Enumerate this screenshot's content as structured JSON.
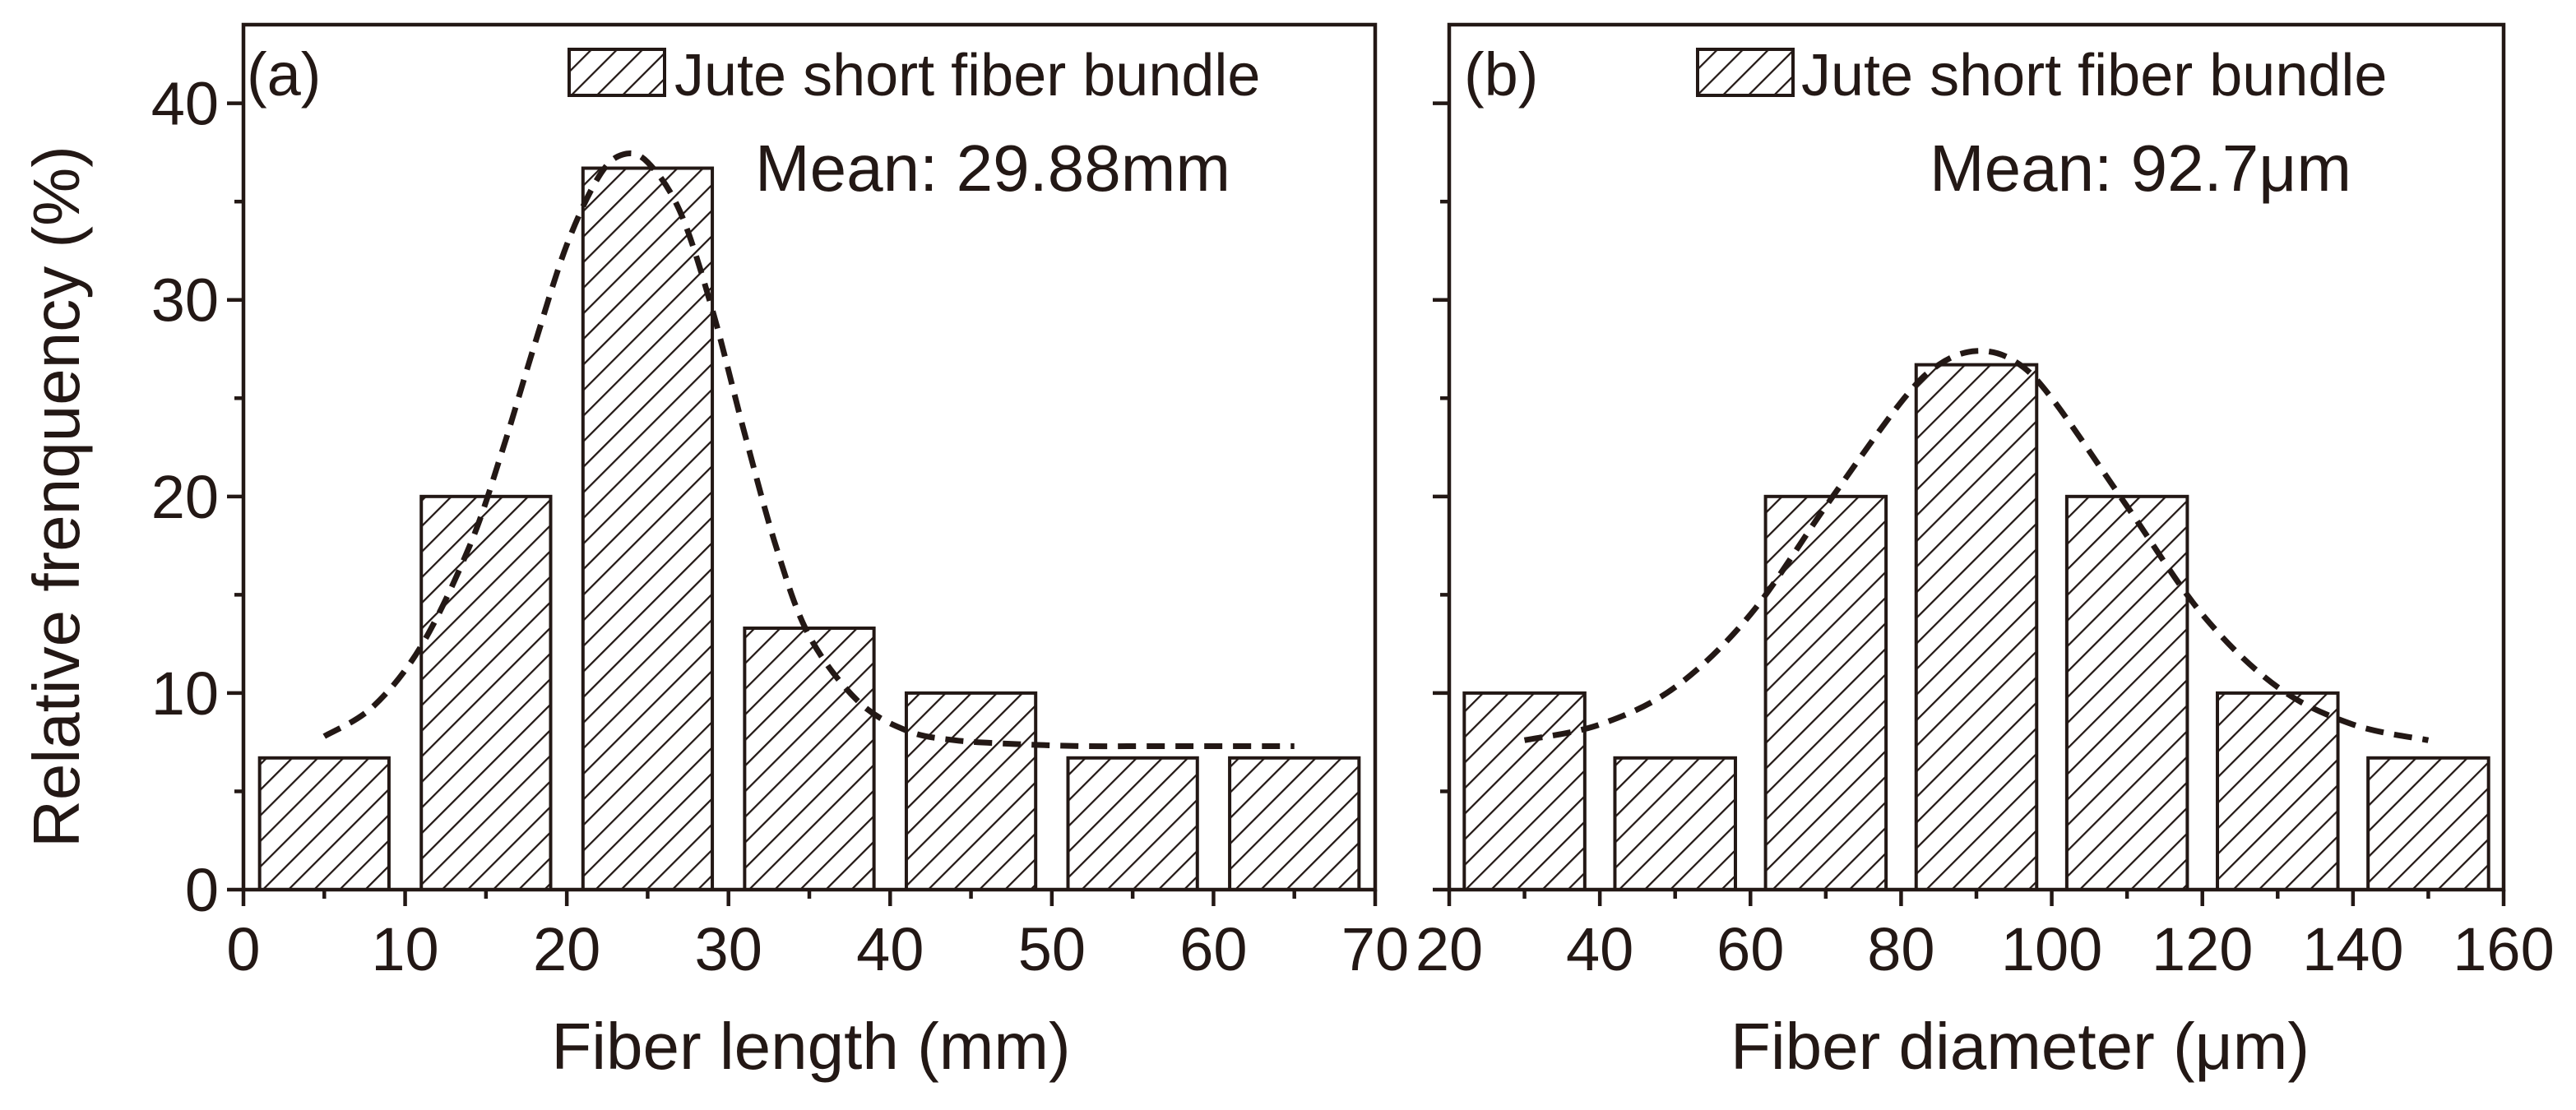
{
  "chart_data": [
    {
      "type": "bar",
      "panel_label": "(a)",
      "legend": "Jute short fiber bundle",
      "annotation": "Mean: 29.88mm",
      "xlabel": "Fiber length (mm)",
      "ylabel": "Relative frenquency (%)",
      "xlim": [
        0,
        70
      ],
      "ylim": [
        0,
        44
      ],
      "xticks": [
        0,
        10,
        20,
        30,
        40,
        50,
        60,
        70
      ],
      "yticks": [
        0,
        10,
        20,
        30,
        40
      ],
      "bin_width": 8,
      "bins": [
        5,
        15,
        25,
        35,
        45,
        55,
        65
      ],
      "values": [
        6.7,
        20.0,
        36.7,
        13.3,
        10.0,
        6.7,
        6.7
      ],
      "fit_curve": {
        "x": [
          5,
          8,
          11,
          14,
          16,
          18,
          20,
          22,
          23.5,
          25,
          27,
          29,
          31,
          33,
          35,
          38,
          41,
          44,
          48,
          52,
          56,
          60,
          65
        ],
        "y": [
          7.8,
          9.3,
          12.4,
          17.5,
          22.3,
          27.7,
          32.8,
          36.3,
          37.4,
          37.0,
          34.5,
          29.5,
          23.2,
          17.3,
          12.9,
          9.6,
          8.1,
          7.6,
          7.4,
          7.3,
          7.3,
          7.3,
          7.3
        ]
      }
    },
    {
      "type": "bar",
      "panel_label": "(b)",
      "legend": "Jute short fiber bundle",
      "annotation": "Mean: 92.7μm",
      "xlabel": "Fiber diameter (μm)",
      "ylabel": "",
      "xlim": [
        20,
        160
      ],
      "ylim": [
        0,
        44
      ],
      "xticks": [
        20,
        40,
        60,
        80,
        100,
        120,
        140,
        160
      ],
      "yticks": [
        0,
        10,
        20,
        30,
        40
      ],
      "bin_width": 16,
      "bins": [
        30,
        50,
        70,
        90,
        110,
        130,
        150
      ],
      "values": [
        10.0,
        6.7,
        20.0,
        26.7,
        20.0,
        10.0,
        6.7
      ],
      "fit_curve": {
        "x": [
          30,
          40,
          50,
          60,
          70,
          80,
          85,
          90,
          95,
          100,
          110,
          120,
          130,
          140,
          150
        ],
        "y": [
          7.6,
          8.4,
          10.3,
          14.0,
          19.5,
          24.8,
          26.7,
          27.4,
          26.9,
          25.0,
          19.5,
          14.0,
          10.3,
          8.4,
          7.6
        ]
      }
    }
  ]
}
